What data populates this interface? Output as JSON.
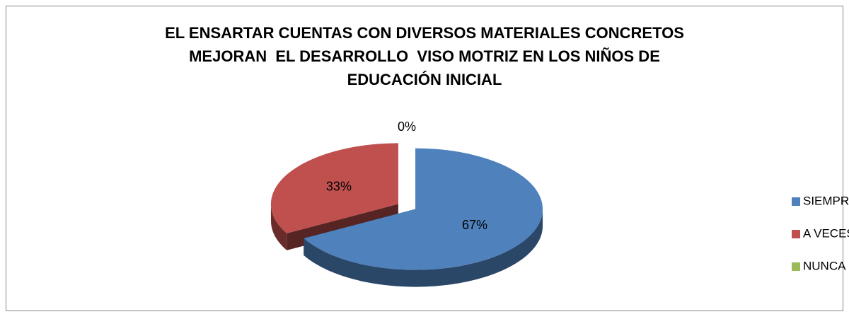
{
  "chart_data": {
    "type": "pie",
    "title": [
      "EL ENSARTAR CUENTAS CON DIVERSOS MATERIALES CONCRETOS",
      "MEJORAN  EL DESARROLLO  VISO MOTRIZ EN LOS NIÑOS DE",
      "EDUCACIÓN INICIAL"
    ],
    "categories": [
      "SIEMPRE",
      "A VECES",
      "NUNCA"
    ],
    "values": [
      67,
      33,
      0
    ],
    "value_labels": [
      "67%",
      "33%",
      "0%"
    ],
    "colors": [
      "#4f81bd",
      "#c0504d",
      "#9bbb59"
    ],
    "legend": "right"
  }
}
